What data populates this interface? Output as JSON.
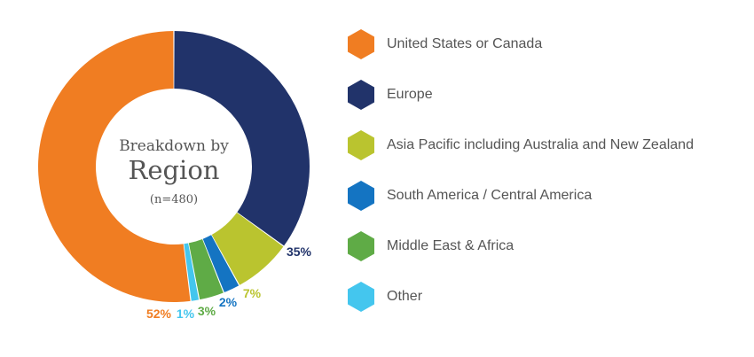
{
  "chart_data": {
    "type": "pie",
    "variant": "donut",
    "center": {
      "line1": "Breakdown by",
      "line2": "Region",
      "line3": "(n=480)"
    },
    "slices": [
      {
        "label": "Europe",
        "value": 35,
        "display": "35%",
        "color": "#21336a"
      },
      {
        "label": "Asia Pacific including Australia and New Zealand",
        "value": 7,
        "display": "7%",
        "color": "#bac42f"
      },
      {
        "label": "South America / Central America",
        "value": 2,
        "display": "2%",
        "color": "#1474c2"
      },
      {
        "label": "Middle East & Africa",
        "value": 3,
        "display": "3%",
        "color": "#5fab46"
      },
      {
        "label": "Other",
        "value": 1,
        "display": "1%",
        "color": "#44c6ee"
      },
      {
        "label": "United States or Canada",
        "value": 52,
        "display": "52%",
        "color": "#f07d22"
      }
    ],
    "legend": {
      "placement": "right",
      "items": [
        {
          "label": "United States or Canada",
          "color": "#f07d22"
        },
        {
          "label": "Europe",
          "color": "#21336a"
        },
        {
          "label": "Asia Pacific including Australia and New Zealand",
          "color": "#bac42f"
        },
        {
          "label": "South America / Central America",
          "color": "#1474c2"
        },
        {
          "label": "Middle East & Africa",
          "color": "#5fab46"
        },
        {
          "label": "Other",
          "color": "#44c6ee"
        }
      ]
    }
  }
}
